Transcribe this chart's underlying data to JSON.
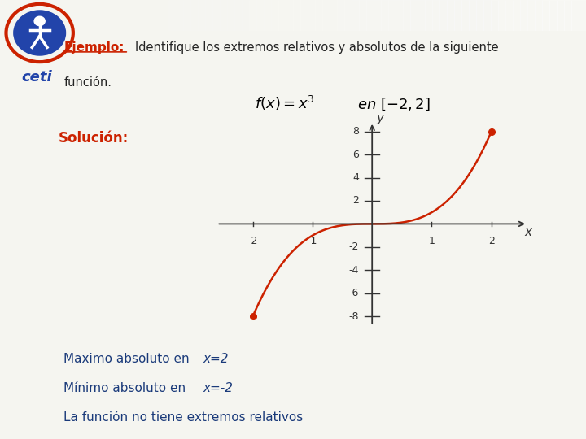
{
  "background_color": "#f5f5f0",
  "header_bar_color": "#3355aa",
  "orange_bar_color": "#e07820",
  "title_red": "#cc2200",
  "title_black": "#222222",
  "blue_text": "#1a3a7a",
  "curve_color": "#cc2200",
  "dot_color": "#cc2200",
  "axis_color": "#333333",
  "ejemplo_text": "Ejemplo:",
  "title_line1": "Identifique los extremos relativos y absolutos de la siguiente",
  "title_line2": "función.",
  "solucion_text": "Solución:",
  "maximo_text": "Maximo absoluto en ",
  "maximo_val": "x=2",
  "minimo_text": "Mínimo absoluto en ",
  "minimo_val": "x=-2",
  "noextremo_text": "La función no tiene extremos relativos",
  "xlim": [
    -2.8,
    2.8
  ],
  "ylim": [
    -9.5,
    9.5
  ],
  "xticks": [
    -2,
    -1,
    1,
    2
  ],
  "yticks": [
    -8,
    -6,
    -4,
    -2,
    2,
    4,
    6,
    8
  ],
  "x_start": -2,
  "x_end": 2
}
